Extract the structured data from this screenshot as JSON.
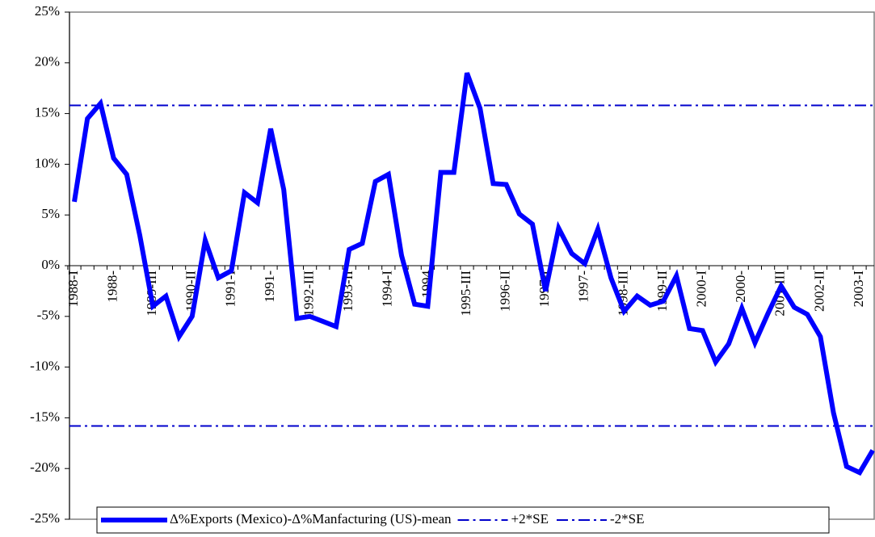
{
  "chart_data": {
    "type": "line",
    "categories": [
      "1988-I",
      null,
      null,
      "1988-",
      null,
      null,
      "1989-III",
      null,
      null,
      "1990-II",
      null,
      null,
      "1991-I",
      null,
      null,
      "1991-",
      null,
      null,
      "1992-III",
      null,
      null,
      "1993-II",
      null,
      null,
      "1994-I",
      null,
      null,
      "1994",
      null,
      null,
      "1995-III",
      null,
      null,
      "1996-II",
      null,
      null,
      "1997-I",
      null,
      null,
      "1997-",
      null,
      null,
      "1998-III",
      null,
      null,
      "1999-II",
      null,
      null,
      "2000-I",
      null,
      null,
      "2000-",
      null,
      null,
      "2001-III",
      null,
      null,
      "2002-II",
      null,
      null,
      "2003-I",
      null
    ],
    "series": [
      {
        "name": "Δ%Exports (Mexico)-Δ%Manfacturing (US)-mean",
        "color": "#0000ff",
        "values": [
          6.3,
          14.5,
          16.0,
          10.6,
          9.0,
          3.0,
          -4.0,
          -3.0,
          -7.0,
          -5.0,
          2.5,
          -1.2,
          -0.5,
          7.2,
          6.2,
          13.5,
          7.5,
          -5.2,
          -5.0,
          -5.5,
          -6.0,
          1.6,
          2.2,
          8.3,
          9.0,
          1.0,
          -3.8,
          -4.0,
          9.2,
          9.2,
          19.0,
          15.5,
          8.1,
          8.0,
          5.1,
          4.1,
          -2.5,
          3.7,
          1.2,
          0.2,
          3.6,
          -1.2,
          -4.5,
          -3.0,
          -3.9,
          -3.5,
          -1.0,
          -6.2,
          -6.4,
          -9.5,
          -7.7,
          -4.2,
          -7.6,
          -4.7,
          -2.0,
          -4.1,
          -4.8,
          -7.0,
          -14.5,
          -19.8,
          -20.4,
          -18.2
        ]
      }
    ],
    "reference_lines": [
      {
        "name": "+2*SE",
        "value": 15.8,
        "color": "#0000cc"
      },
      {
        "name": "-2*SE",
        "value": -15.8,
        "color": "#0000cc"
      }
    ],
    "ylim": [
      -25,
      25
    ],
    "yticks": [
      {
        "value": -25,
        "label": "-25%"
      },
      {
        "value": -20,
        "label": "-20%"
      },
      {
        "value": -15,
        "label": "-15%"
      },
      {
        "value": -10,
        "label": "-10%"
      },
      {
        "value": -5,
        "label": "-5%"
      },
      {
        "value": 0,
        "label": "0%"
      },
      {
        "value": 5,
        "label": "5%"
      },
      {
        "value": 10,
        "label": "10%"
      },
      {
        "value": 15,
        "label": "15%"
      },
      {
        "value": 20,
        "label": "20%"
      },
      {
        "value": 25,
        "label": "25%"
      }
    ],
    "legend": "bottom"
  }
}
